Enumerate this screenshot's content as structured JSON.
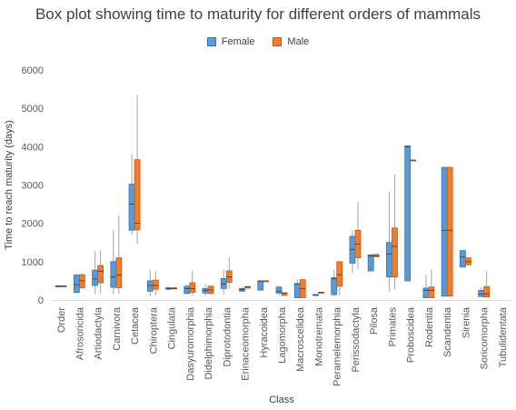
{
  "chart_data": {
    "type": "box",
    "title": "Box plot showing time to maturity for different orders of mammals",
    "xlabel": "Class",
    "ylabel": "Time to reach maturity (days)",
    "ylim": [
      0,
      6000
    ],
    "yticks": [
      0,
      1000,
      2000,
      3000,
      4000,
      5000,
      6000
    ],
    "grid": false,
    "legend_position": "top",
    "colors": {
      "female": "#5b9bd5",
      "male": "#ed7d31",
      "outline": "#2e75b6",
      "male_outline": "#c55a11",
      "whisker": "#a5a5a5"
    },
    "series_names": [
      "Female",
      "Male"
    ],
    "categories": [
      "Order",
      "Afrosoricida",
      "Artiodactyla",
      "Carnivora",
      "Cetacea",
      "Chiroptera",
      "Cingulata",
      "Dasyuromorphia",
      "Didelphimorphia",
      "Diprotodontia",
      "Erinaceomorpha",
      "Hyracoidea",
      "Lagomorpha",
      "Macroscelidea",
      "Monotremata",
      "Peramelemorphia",
      "Perissodactyla",
      "Pilosa",
      "Primates",
      "Proboscidea",
      "Rodentia",
      "Scandentia",
      "Sirenia",
      "Soricomorpha",
      "Tubulidentata"
    ],
    "series": [
      {
        "name": "Female",
        "boxes": [
          {
            "min": 365,
            "q1": 365,
            "median": 365,
            "q3": 365,
            "max": 365
          },
          {
            "min": 180,
            "q1": 200,
            "median": 400,
            "q3": 650,
            "max": 680
          },
          {
            "min": 150,
            "q1": 380,
            "median": 550,
            "q3": 780,
            "max": 1270
          },
          {
            "min": 140,
            "q1": 330,
            "median": 600,
            "q3": 1000,
            "max": 1830
          },
          {
            "min": 1700,
            "q1": 1820,
            "median": 2500,
            "q3": 3020,
            "max": 3800
          },
          {
            "min": 100,
            "q1": 230,
            "median": 380,
            "q3": 500,
            "max": 780
          },
          {
            "min": 260,
            "q1": 280,
            "median": 300,
            "q3": 320,
            "max": 350
          },
          {
            "min": 150,
            "q1": 170,
            "median": 300,
            "q3": 360,
            "max": 400
          },
          {
            "min": 110,
            "q1": 180,
            "median": 250,
            "q3": 300,
            "max": 420
          },
          {
            "min": 160,
            "q1": 300,
            "median": 420,
            "q3": 560,
            "max": 780
          },
          {
            "min": 210,
            "q1": 230,
            "median": 270,
            "q3": 300,
            "max": 340
          },
          {
            "min": 240,
            "q1": 260,
            "median": 490,
            "q3": 500,
            "max": 510
          },
          {
            "min": 120,
            "q1": 180,
            "median": 220,
            "q3": 340,
            "max": 360
          },
          {
            "min": 60,
            "q1": 60,
            "median": 420,
            "q3": 430,
            "max": 540
          },
          {
            "min": 140,
            "q1": 140,
            "median": 140,
            "q3": 140,
            "max": 140
          },
          {
            "min": 100,
            "q1": 140,
            "median": 560,
            "q3": 580,
            "max": 780
          },
          {
            "min": 700,
            "q1": 960,
            "median": 1320,
            "q3": 1660,
            "max": 1820
          },
          {
            "min": 750,
            "q1": 760,
            "median": 1150,
            "q3": 1180,
            "max": 1190
          },
          {
            "min": 220,
            "q1": 600,
            "median": 1200,
            "q3": 1500,
            "max": 2830
          },
          {
            "min": 500,
            "q1": 500,
            "median": 4000,
            "q3": 4020,
            "max": 4020
          },
          {
            "min": 40,
            "q1": 60,
            "median": 250,
            "q3": 310,
            "max": 650
          },
          {
            "min": 100,
            "q1": 100,
            "median": 1820,
            "q3": 3460,
            "max": 3480
          },
          {
            "min": 850,
            "q1": 860,
            "median": 1130,
            "q3": 1290,
            "max": 1300
          },
          {
            "min": 80,
            "q1": 90,
            "median": 160,
            "q3": 250,
            "max": 320
          },
          null
        ]
      },
      {
        "name": "Male",
        "boxes": [
          {
            "min": 365,
            "q1": 365,
            "median": 365,
            "q3": 365,
            "max": 365
          },
          {
            "min": 300,
            "q1": 320,
            "median": 500,
            "q3": 660,
            "max": 700
          },
          {
            "min": 180,
            "q1": 450,
            "median": 750,
            "q3": 900,
            "max": 1290
          },
          {
            "min": 160,
            "q1": 320,
            "median": 650,
            "q3": 1100,
            "max": 2200
          },
          {
            "min": 1460,
            "q1": 1830,
            "median": 2000,
            "q3": 3660,
            "max": 5350
          },
          {
            "min": 120,
            "q1": 280,
            "median": 380,
            "q3": 520,
            "max": 760
          },
          {
            "min": 280,
            "q1": 290,
            "median": 300,
            "q3": 320,
            "max": 330
          },
          {
            "min": 130,
            "q1": 200,
            "median": 300,
            "q3": 450,
            "max": 760
          },
          {
            "min": 130,
            "q1": 170,
            "median": 260,
            "q3": 360,
            "max": 380
          },
          {
            "min": 300,
            "q1": 460,
            "median": 600,
            "q3": 760,
            "max": 1120
          },
          {
            "min": 300,
            "q1": 310,
            "median": 340,
            "q3": 350,
            "max": 360
          },
          {
            "min": 500,
            "q1": 500,
            "median": 500,
            "q3": 500,
            "max": 500
          },
          {
            "min": 120,
            "q1": 120,
            "median": 180,
            "q3": 190,
            "max": 200
          },
          {
            "min": 60,
            "q1": 60,
            "median": 300,
            "q3": 530,
            "max": 560
          },
          {
            "min": 200,
            "q1": 200,
            "median": 200,
            "q3": 200,
            "max": 200
          },
          {
            "min": 120,
            "q1": 360,
            "median": 660,
            "q3": 1000,
            "max": 1000
          },
          {
            "min": 800,
            "q1": 1100,
            "median": 1460,
            "q3": 1820,
            "max": 2560
          },
          {
            "min": 1130,
            "q1": 1130,
            "median": 1150,
            "q3": 1190,
            "max": 1200
          },
          {
            "min": 280,
            "q1": 600,
            "median": 1400,
            "q3": 1880,
            "max": 3280
          },
          {
            "min": 3650,
            "q1": 3650,
            "median": 3650,
            "q3": 3650,
            "max": 3650
          },
          {
            "min": 40,
            "q1": 60,
            "median": 250,
            "q3": 340,
            "max": 800
          },
          {
            "min": 100,
            "q1": 100,
            "median": 1820,
            "q3": 3460,
            "max": 3480
          },
          {
            "min": 900,
            "q1": 920,
            "median": 1000,
            "q3": 1100,
            "max": 1120
          },
          {
            "min": 70,
            "q1": 80,
            "median": 160,
            "q3": 350,
            "max": 760
          },
          null
        ]
      }
    ]
  }
}
